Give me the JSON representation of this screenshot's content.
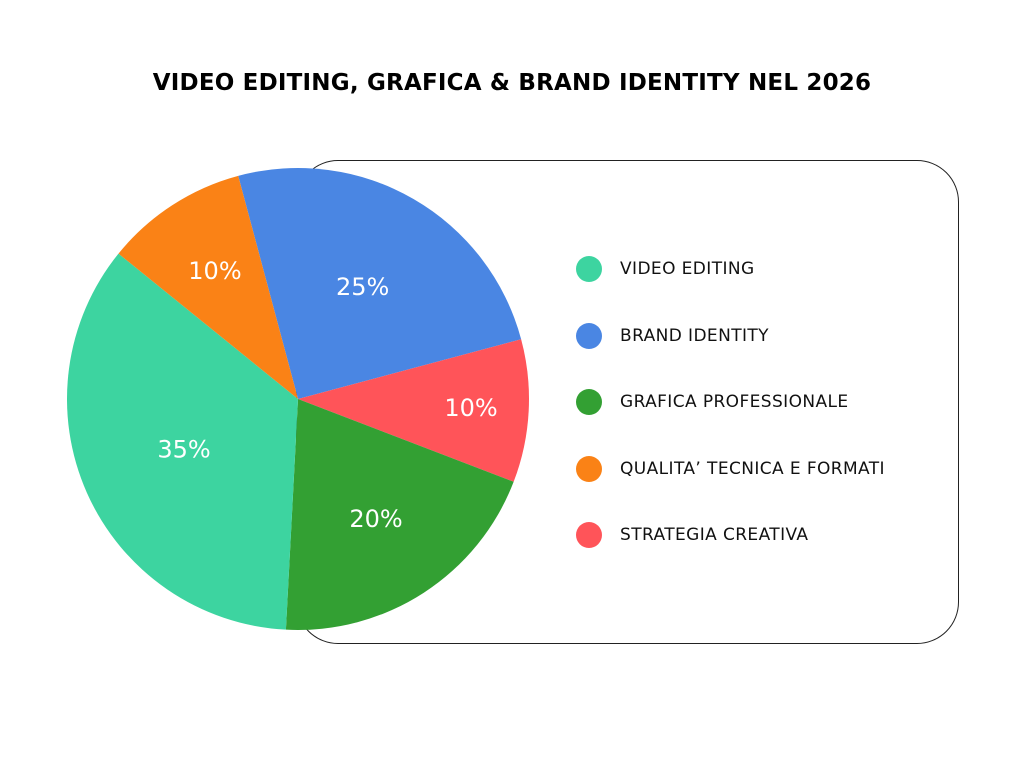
{
  "title": "VIDEO EDITING, GRAFICA & BRAND IDENTITY NEL 2026",
  "legend": [
    {
      "label": "VIDEO EDITING",
      "color": "#3DD4A0"
    },
    {
      "label": "BRAND IDENTITY",
      "color": "#4A86E3"
    },
    {
      "label": "GRAFICA PROFESSIONALE",
      "color": "#33A033"
    },
    {
      "label": "QUALITA’ TECNICA E FORMATI",
      "color": "#FA8216"
    },
    {
      "label": "STRATEGIA CREATIVA",
      "color": "#FF5459"
    }
  ],
  "slices": [
    {
      "name": "BRAND IDENTITY",
      "value": 25,
      "label": "25%",
      "color": "#4A86E3"
    },
    {
      "name": "STRATEGIA CREATIVA",
      "value": 10,
      "label": "10%",
      "color": "#FF5459"
    },
    {
      "name": "GRAFICA PROFESSIONALE",
      "value": 20,
      "label": "20%",
      "color": "#33A033"
    },
    {
      "name": "VIDEO EDITING",
      "value": 35,
      "label": "35%",
      "color": "#3DD4A0"
    },
    {
      "name": "QUALITA’ TECNICA E FORMATI",
      "value": 10,
      "label": "10%",
      "color": "#FA8216"
    }
  ],
  "chart_data": {
    "type": "pie",
    "title": "VIDEO EDITING, GRAFICA & BRAND IDENTITY NEL 2026",
    "categories": [
      "VIDEO EDITING",
      "BRAND IDENTITY",
      "GRAFICA PROFESSIONALE",
      "QUALITA’ TECNICA E FORMATI",
      "STRATEGIA CREATIVA"
    ],
    "values": [
      35,
      25,
      20,
      10,
      10
    ],
    "unit": "%",
    "colors": [
      "#3DD4A0",
      "#4A86E3",
      "#33A033",
      "#FA8216",
      "#FF5459"
    ],
    "legend_position": "right",
    "data_labels": [
      "35%",
      "25%",
      "20%",
      "10%",
      "10%"
    ]
  }
}
